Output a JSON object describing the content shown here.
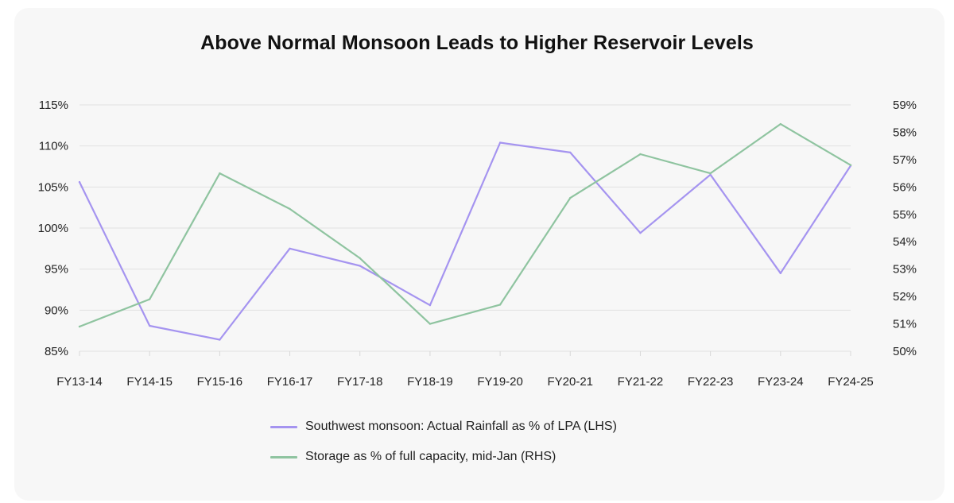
{
  "chart_data": {
    "type": "line",
    "title": "Above Normal Monsoon Leads to Higher Reservoir Levels",
    "categories": [
      "FY13-14",
      "FY14-15",
      "FY15-16",
      "FY16-17",
      "FY17-18",
      "FY18-19",
      "FY19-20",
      "FY20-21",
      "FY21-22",
      "FY22-23",
      "FY23-24",
      "FY24-25"
    ],
    "left_axis": {
      "min": 85,
      "max": 115,
      "ticks": [
        "115%",
        "110%",
        "105%",
        "100%",
        "95%",
        "90%",
        "85%"
      ]
    },
    "right_axis": {
      "min": 50,
      "max": 59,
      "ticks": [
        "59%",
        "58%",
        "57%",
        "56%",
        "55%",
        "54%",
        "53%",
        "52%",
        "51%",
        "50%"
      ]
    },
    "series": [
      {
        "name": "Southwest monsoon: Actual Rainfall as % of LPA (LHS)",
        "axis": "left",
        "color": "#a594f0",
        "values": [
          105.6,
          88.1,
          86.4,
          97.5,
          95.4,
          90.6,
          110.4,
          109.2,
          99.4,
          106.5,
          94.5,
          107.6
        ]
      },
      {
        "name": "Storage as % of full capacity, mid-Jan (RHS)",
        "axis": "right",
        "color": "#8fc4a0",
        "values": [
          50.9,
          51.9,
          56.5,
          55.2,
          53.4,
          51.0,
          51.7,
          55.6,
          57.2,
          56.5,
          58.3,
          56.8
        ]
      }
    ],
    "grid": true,
    "legend_position": "bottom"
  }
}
